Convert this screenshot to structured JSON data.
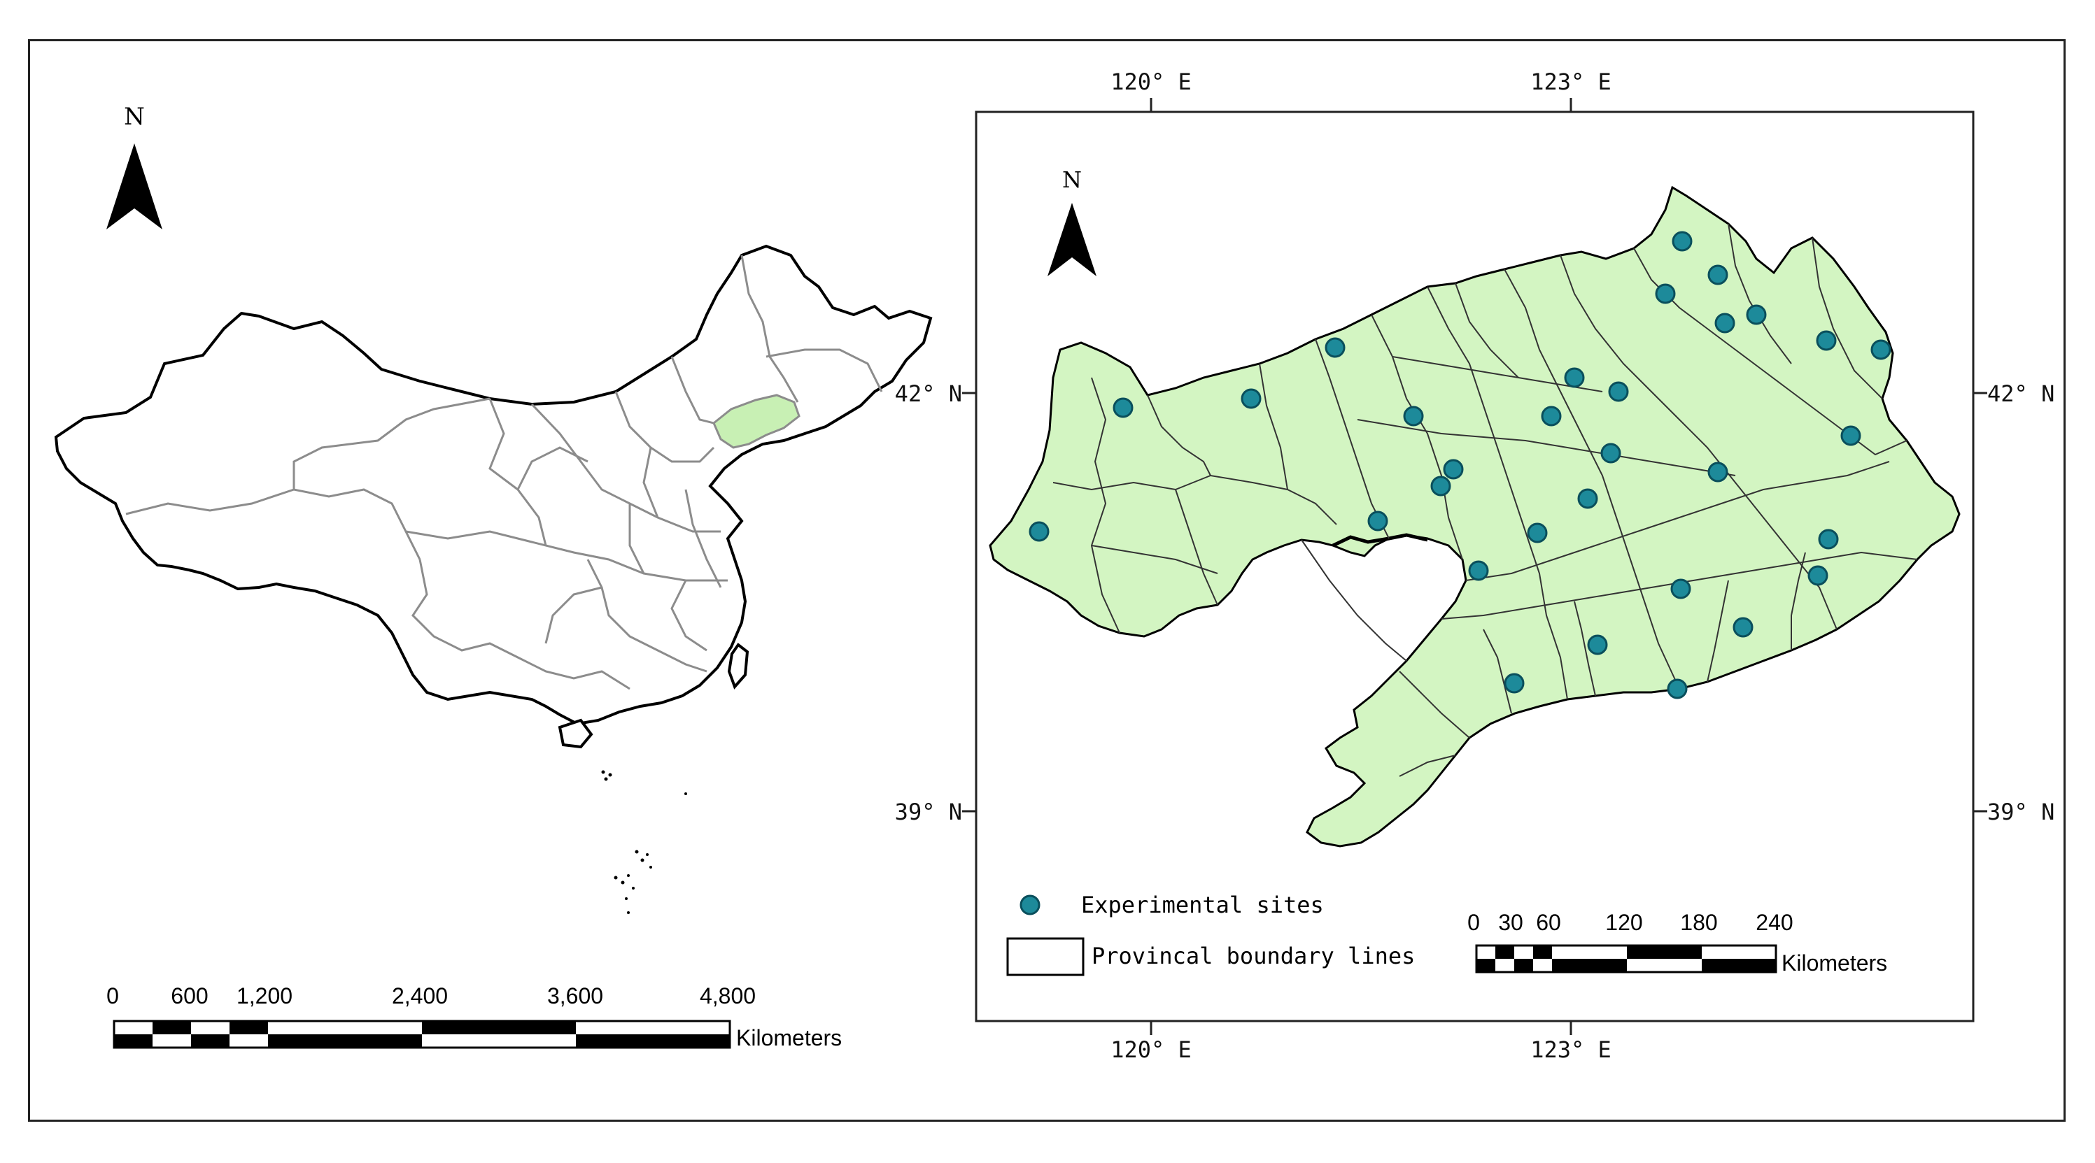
{
  "left_map": {
    "north_label": "N",
    "scale_labels": [
      "0",
      "600",
      "1,200",
      "2,400",
      "3,600",
      "4,800"
    ],
    "scale_unit": "Kilometers"
  },
  "right_map": {
    "north_label": "N",
    "top_lon_labels": [
      "120° E",
      "123° E"
    ],
    "bottom_lon_labels": [
      "120° E",
      "123° E"
    ],
    "left_lat_labels": [
      "42° N",
      "39° N"
    ],
    "right_lat_labels": [
      "42° N",
      "39° N"
    ],
    "legend": {
      "sites_label": "Experimental sites",
      "boundary_label": "Provincal boundary lines"
    },
    "scale_labels": [
      "0",
      "30",
      "60",
      "120",
      "180",
      "240"
    ],
    "scale_unit": "Kilometers",
    "site_count": 35
  },
  "colors": {
    "province_fill": "#d3f5c2",
    "site_fill": "#1d8a9a",
    "highlight_fill": "#c8f0b4",
    "china_border": "#000000",
    "inner_border": "#8c8c8c"
  }
}
